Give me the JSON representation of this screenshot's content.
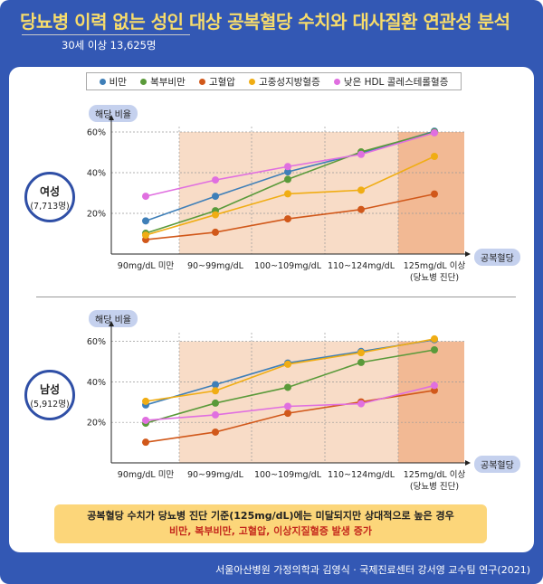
{
  "header": {
    "title": "당뇨병 이력 없는 성인 대상 공복혈당 수치와 대사질환 연관성 분석",
    "subtitle": "30세 이상 13,625명"
  },
  "chart_data": [
    {
      "type": "line",
      "title": "여성",
      "subtitle": "(7,713명)",
      "ylabel": "해당 비율",
      "xlabel": "공복혈당",
      "categories": [
        "90mg/dL 미만",
        "90~99mg/dL",
        "100~109mg/dL",
        "110~124mg/dL",
        "125mg/dL 이상"
      ],
      "category_notes": [
        "",
        "",
        "",
        "",
        "(당뇨병 진단)"
      ],
      "yticks": [
        "20%",
        "40%",
        "60%"
      ],
      "ylim": [
        0,
        62
      ],
      "series": [
        {
          "name": "비만",
          "color": "#3f7fb8",
          "values": [
            16.3,
            28.4,
            40.4,
            49.6,
            60.4
          ]
        },
        {
          "name": "복부비만",
          "color": "#5a9a3a",
          "values": [
            10.2,
            21.3,
            36.7,
            50.2,
            60
          ]
        },
        {
          "name": "고혈압",
          "color": "#d1581a",
          "values": [
            7.1,
            10.7,
            17.3,
            21.9,
            29.5
          ]
        },
        {
          "name": "고중성지방혈증",
          "color": "#f0ad14",
          "values": [
            9.3,
            19.3,
            29.6,
            31.4,
            48
          ]
        },
        {
          "name": "낮은 HDL 콜레스테롤혈증",
          "color": "#e06fe0",
          "values": [
            28.4,
            36.4,
            43,
            49,
            59.6
          ]
        }
      ]
    },
    {
      "type": "line",
      "title": "남성",
      "subtitle": "(5,912명)",
      "ylabel": "해당 비율",
      "xlabel": "공복혈당",
      "categories": [
        "90mg/dL 미만",
        "90~99mg/dL",
        "100~109mg/dL",
        "110~124mg/dL",
        "125mg/dL 이상"
      ],
      "category_notes": [
        "",
        "",
        "",
        "",
        "(당뇨병 진단)"
      ],
      "yticks": [
        "20%",
        "40%",
        "60%"
      ],
      "ylim": [
        0,
        62
      ],
      "series": [
        {
          "name": "비만",
          "color": "#3f7fb8",
          "values": [
            28.6,
            38.6,
            49.3,
            55,
            60.8
          ]
        },
        {
          "name": "복부비만",
          "color": "#5a9a3a",
          "values": [
            19.6,
            29.5,
            37.3,
            49.6,
            55.8
          ]
        },
        {
          "name": "고혈압",
          "color": "#d1581a",
          "values": [
            10.2,
            15.2,
            24.5,
            30.1,
            35.8
          ]
        },
        {
          "name": "고중성지방혈증",
          "color": "#f0ad14",
          "values": [
            30.4,
            35.6,
            48.7,
            54.4,
            61.2
          ]
        },
        {
          "name": "낮은 HDL 콜레스테롤혈증",
          "color": "#e06fe0",
          "values": [
            21,
            23.7,
            27.9,
            29.2,
            38.2
          ]
        }
      ]
    }
  ],
  "callout": {
    "line1": "공복혈당 수치가 당뇨병 진단 기준(125mg/dL)에는 미달되지만 상대적으로 높은 경우",
    "line2": "비만, 복부비만, 고혈압, 이상지질혈증 발생 증가"
  },
  "footer": "서울아산병원 가정의학과 김영식 · 국제진료센터 강서영 교수팀 연구(2021)"
}
